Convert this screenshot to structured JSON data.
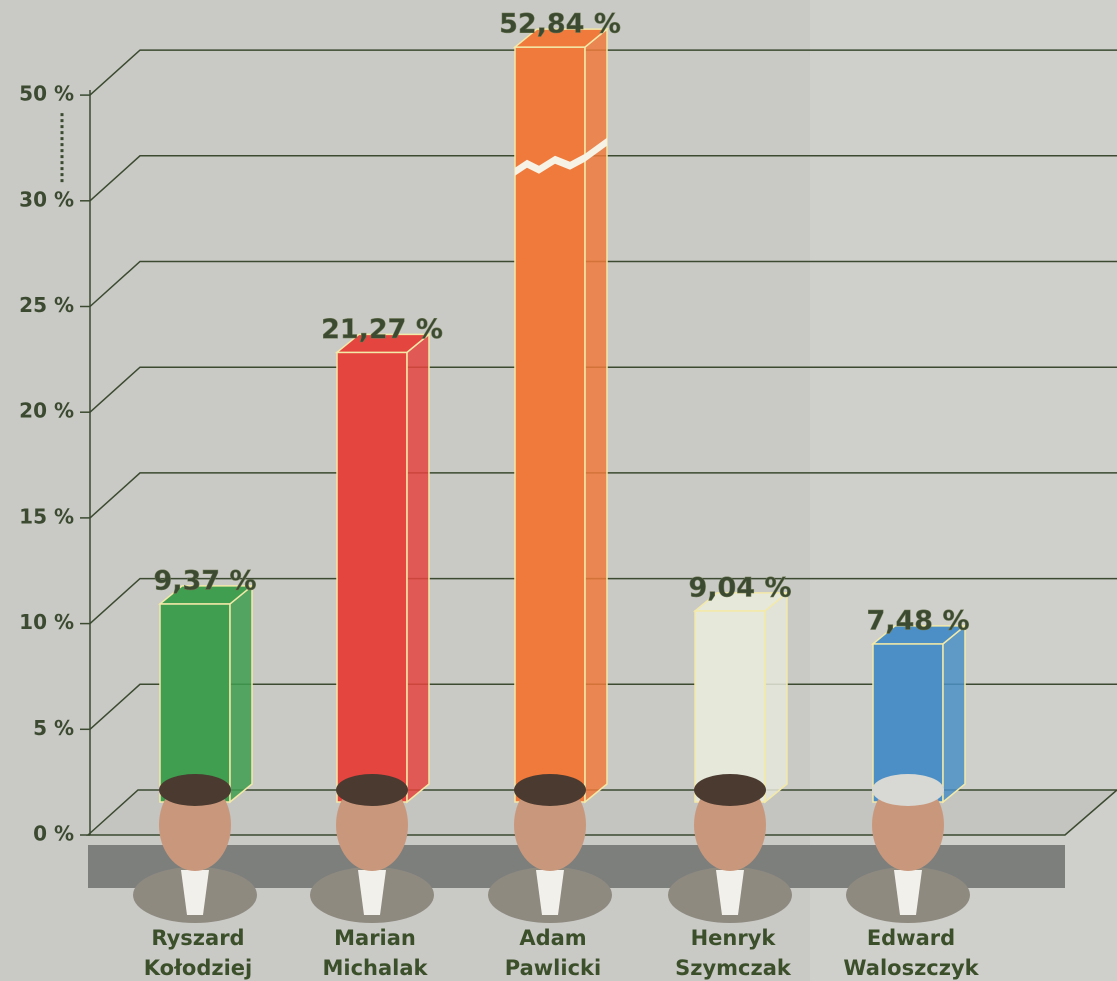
{
  "chart_data": {
    "type": "bar3d",
    "categories": [
      "Ryszard Kołodziej",
      "Marian Michalak",
      "Adam Pawlicki",
      "Henryk Szymczak",
      "Edward Waloszczyk"
    ],
    "values": [
      9.37,
      21.27,
      52.84,
      9.04,
      7.48
    ],
    "value_labels": [
      "9,37 %",
      "21,27 %",
      "52,84 %",
      "9,04 %",
      "7,48 %"
    ],
    "colors": [
      "#3f9e4f",
      "#e5453f",
      "#ef7a3c",
      "#e6e8da",
      "#4b8fc6"
    ],
    "ylim": [
      0,
      50
    ],
    "yticks": [
      {
        "value": 0,
        "label": "0 %"
      },
      {
        "value": 5,
        "label": "5 %"
      },
      {
        "value": 10,
        "label": "10 %"
      },
      {
        "value": 15,
        "label": "15 %"
      },
      {
        "value": 20,
        "label": "20 %"
      },
      {
        "value": 25,
        "label": "25 %"
      },
      {
        "value": 30,
        "label": "30 %"
      },
      {
        "value": 50,
        "label": "50 %"
      }
    ],
    "axis_break": [
      30,
      50
    ],
    "grid": true
  }
}
